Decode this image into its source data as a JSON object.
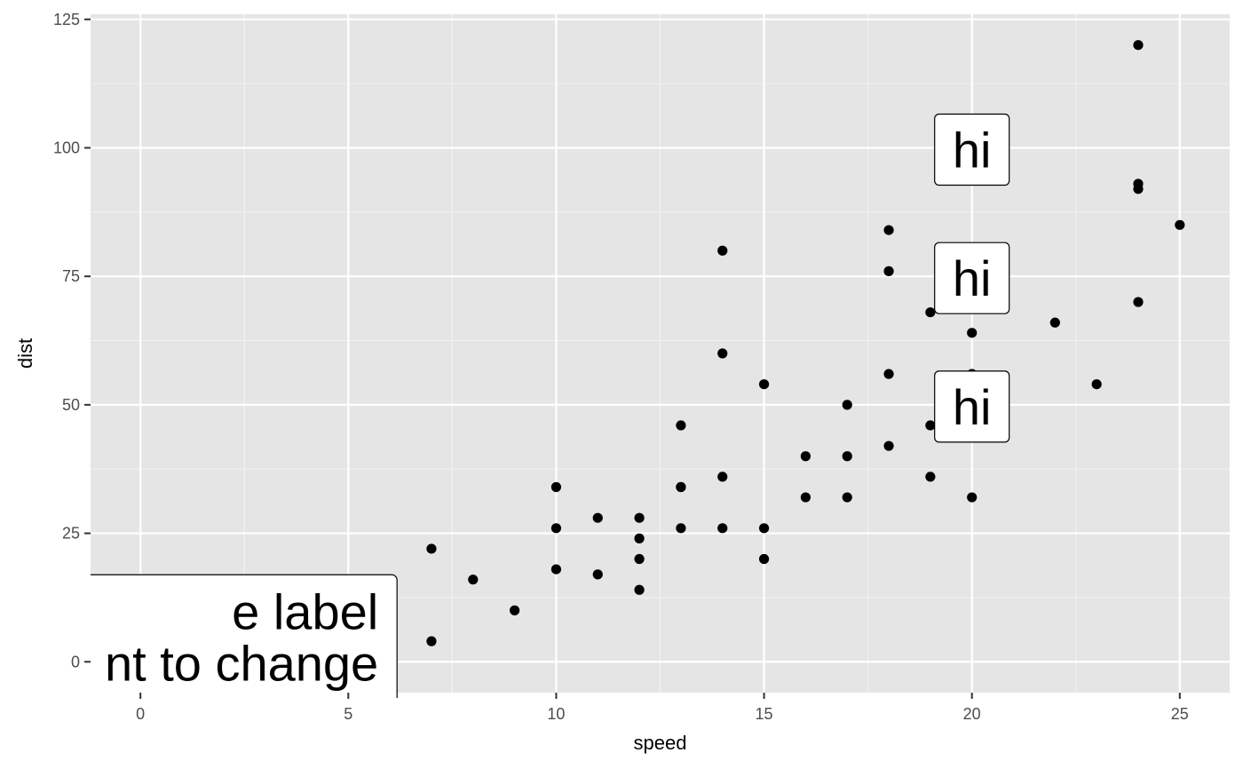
{
  "chart_data": {
    "type": "scatter",
    "title": "",
    "xlabel": "speed",
    "ylabel": "dist",
    "xlim": [
      -1.2,
      26.2
    ],
    "ylim": [
      -6,
      126
    ],
    "x_ticks": [
      0,
      5,
      10,
      15,
      20,
      25
    ],
    "y_ticks": [
      0,
      25,
      50,
      75,
      100,
      125
    ],
    "grid": true,
    "colors": {
      "panel_background": "#e5e5e5",
      "grid_major": "#ffffff",
      "grid_minor": "#f2f2f2",
      "point": "#000000",
      "label_fill": "#ffffff",
      "label_border": "#000000"
    },
    "points": [
      {
        "x": 4,
        "y": 2
      },
      {
        "x": 4,
        "y": 10
      },
      {
        "x": 7,
        "y": 4
      },
      {
        "x": 7,
        "y": 22
      },
      {
        "x": 8,
        "y": 16
      },
      {
        "x": 9,
        "y": 10
      },
      {
        "x": 10,
        "y": 18
      },
      {
        "x": 10,
        "y": 26
      },
      {
        "x": 10,
        "y": 34
      },
      {
        "x": 11,
        "y": 17
      },
      {
        "x": 11,
        "y": 28
      },
      {
        "x": 12,
        "y": 14
      },
      {
        "x": 12,
        "y": 20
      },
      {
        "x": 12,
        "y": 24
      },
      {
        "x": 12,
        "y": 28
      },
      {
        "x": 13,
        "y": 26
      },
      {
        "x": 13,
        "y": 34
      },
      {
        "x": 13,
        "y": 34
      },
      {
        "x": 13,
        "y": 46
      },
      {
        "x": 14,
        "y": 26
      },
      {
        "x": 14,
        "y": 36
      },
      {
        "x": 14,
        "y": 60
      },
      {
        "x": 14,
        "y": 80
      },
      {
        "x": 15,
        "y": 20
      },
      {
        "x": 15,
        "y": 26
      },
      {
        "x": 15,
        "y": 54
      },
      {
        "x": 16,
        "y": 32
      },
      {
        "x": 16,
        "y": 40
      },
      {
        "x": 17,
        "y": 32
      },
      {
        "x": 17,
        "y": 40
      },
      {
        "x": 17,
        "y": 50
      },
      {
        "x": 18,
        "y": 42
      },
      {
        "x": 18,
        "y": 56
      },
      {
        "x": 18,
        "y": 76
      },
      {
        "x": 18,
        "y": 84
      },
      {
        "x": 19,
        "y": 36
      },
      {
        "x": 19,
        "y": 46
      },
      {
        "x": 19,
        "y": 68
      },
      {
        "x": 20,
        "y": 32
      },
      {
        "x": 20,
        "y": 48
      },
      {
        "x": 20,
        "y": 52
      },
      {
        "x": 20,
        "y": 56
      },
      {
        "x": 20,
        "y": 64
      },
      {
        "x": 22,
        "y": 66
      },
      {
        "x": 23,
        "y": 54
      },
      {
        "x": 24,
        "y": 70
      },
      {
        "x": 24,
        "y": 92
      },
      {
        "x": 24,
        "y": 93
      },
      {
        "x": 24,
        "y": 120
      },
      {
        "x": 25,
        "y": 85
      }
    ],
    "annotations": [
      {
        "x": 20,
        "y": 50,
        "text": "hi"
      },
      {
        "x": 20,
        "y": 75,
        "text": "hi"
      },
      {
        "x": 20,
        "y": 100,
        "text": "hi"
      }
    ],
    "big_label": {
      "x": 0,
      "y": 0,
      "lines": [
        "e label",
        "nt to change"
      ]
    }
  }
}
